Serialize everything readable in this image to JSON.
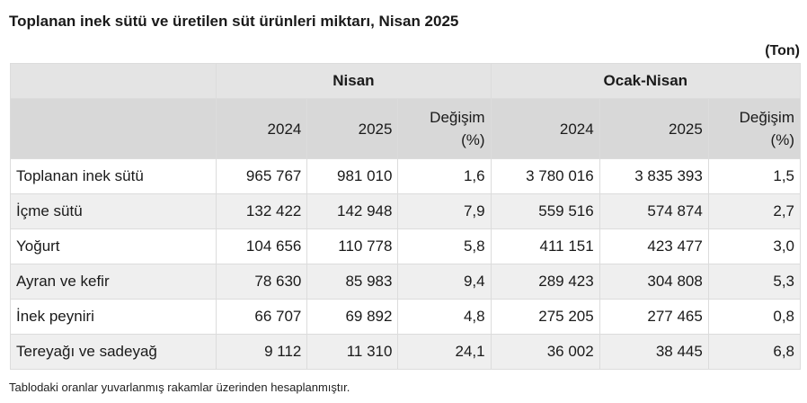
{
  "title": "Toplanan inek sütü ve üretilen süt ürünleri miktarı, Nisan 2025",
  "unit": "(Ton)",
  "table": {
    "group_headers": [
      "Nisan",
      "Ocak-Nisan"
    ],
    "sub_headers": {
      "y2024": "2024",
      "y2025": "2025",
      "change_line1": "Değişim",
      "change_line2": "(%)"
    },
    "rows": [
      {
        "label": "Toplanan inek sütü",
        "n2024": "965 767",
        "n2025": "981 010",
        "nchg": "1,6",
        "o2024": "3 780 016",
        "o2025": "3 835 393",
        "ochg": "1,5"
      },
      {
        "label": "İçme sütü",
        "n2024": "132 422",
        "n2025": "142 948",
        "nchg": "7,9",
        "o2024": "559 516",
        "o2025": "574 874",
        "ochg": "2,7"
      },
      {
        "label": "Yoğurt",
        "n2024": "104 656",
        "n2025": "110 778",
        "nchg": "5,8",
        "o2024": "411 151",
        "o2025": "423 477",
        "ochg": "3,0"
      },
      {
        "label": "Ayran ve kefir",
        "n2024": "78 630",
        "n2025": "85 983",
        "nchg": "9,4",
        "o2024": "289 423",
        "o2025": "304 808",
        "ochg": "5,3"
      },
      {
        "label": "İnek peyniri",
        "n2024": "66 707",
        "n2025": "69 892",
        "nchg": "4,8",
        "o2024": "275 205",
        "o2025": "277 465",
        "ochg": "0,8"
      },
      {
        "label": "Tereyağı ve sadeyağ",
        "n2024": "9 112",
        "n2025": "11 310",
        "nchg": "24,1",
        "o2024": "36 002",
        "o2025": "38 445",
        "ochg": "6,8"
      }
    ]
  },
  "note": "Tablodaki oranlar yuvarlanmış rakamlar üzerinden hesaplanmıştır."
}
